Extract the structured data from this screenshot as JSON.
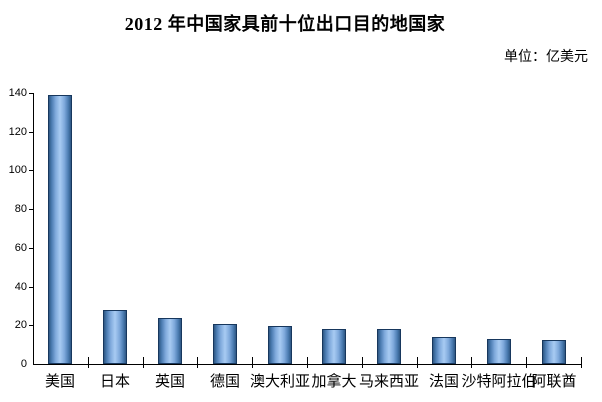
{
  "chart_data": {
    "type": "bar",
    "title": "2012 年中国家具前十位出口目的地国家",
    "unit_label": "单位：亿美元",
    "categories": [
      "美国",
      "日本",
      "英国",
      "德国",
      "澳大利亚",
      "加拿大",
      "马来西亚",
      "法国",
      "沙特阿拉伯",
      "阿联酋"
    ],
    "values": [
      139,
      28,
      24,
      20.5,
      19.5,
      18,
      18,
      14,
      13,
      12.5
    ],
    "xlabel": "",
    "ylabel": "",
    "ylim": [
      0,
      140
    ],
    "yticks": [
      0,
      20,
      40,
      60,
      80,
      100,
      120,
      140
    ],
    "grid": false,
    "legend": "none",
    "colors": {
      "bar_edge": "#2f5784",
      "bar_shoulder": "#4a7bb0",
      "bar_light": "#7fa9dc",
      "bar_mid": "#a8cbf2",
      "bar_border": "#17375d",
      "axis": "#000000",
      "text": "#000000",
      "background": "#ffffff"
    }
  }
}
